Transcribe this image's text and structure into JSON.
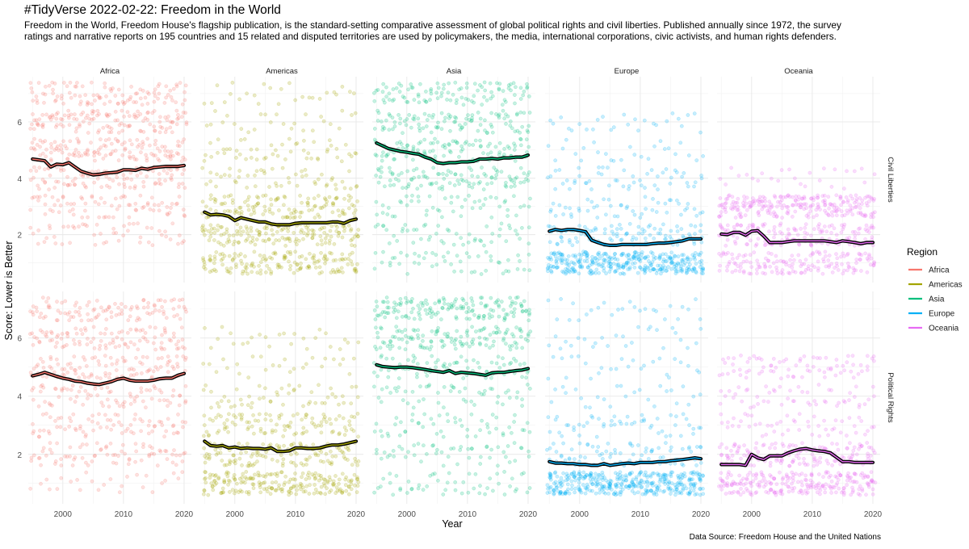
{
  "chart_data": {
    "type": "scatter",
    "title": "#TidyVerse 2022-02-22: Freedom in the World",
    "subtitle_lines": [
      "Freedom in the World, Freedom House's flagship publication, is the standard-setting comparative assessment of global political rights and civil liberties. Published annually since 1972, the survey",
      "ratings and narrative reports on 195 countries and 15 related and disputed territories are used by policymakers, the media, international corporations, civic activists, and human rights defenders."
    ],
    "caption": "Data Source: Freedom House and the United Nations",
    "xlabel": "Year",
    "ylabel": "Score: Lower is Better",
    "x_ticks": [
      2000,
      2010,
      2020
    ],
    "y_ticks": [
      2,
      4,
      6
    ],
    "xlim": [
      1994.3,
      2021.2
    ],
    "ylim": [
      0.3,
      7.6
    ],
    "grid": true,
    "columns": [
      "Africa",
      "Americas",
      "Asia",
      "Europe",
      "Oceania"
    ],
    "rows": [
      "Civil Liberties",
      "Political Rights"
    ],
    "legend": {
      "title": "Region",
      "position": "right",
      "items": [
        {
          "label": "Africa",
          "color": "#F8766D"
        },
        {
          "label": "Americas",
          "color": "#A3A500"
        },
        {
          "label": "Asia",
          "color": "#00BF7D"
        },
        {
          "label": "Europe",
          "color": "#00B0F6"
        },
        {
          "label": "Oceania",
          "color": "#E76BF3"
        }
      ]
    },
    "point_distributions": {
      "Civil Liberties": {
        "Africa": [
          0.02,
          0.08,
          0.12,
          0.18,
          0.22,
          0.22,
          0.16
        ],
        "Americas": [
          0.26,
          0.28,
          0.22,
          0.1,
          0.07,
          0.04,
          0.03
        ],
        "Asia": [
          0.07,
          0.08,
          0.11,
          0.16,
          0.2,
          0.2,
          0.18
        ],
        "Europe": [
          0.58,
          0.17,
          0.08,
          0.08,
          0.04,
          0.03,
          0.02
        ],
        "Oceania": [
          0.28,
          0.26,
          0.4,
          0.06,
          0.0,
          0.0,
          0.0
        ]
      },
      "Political Rights": {
        "Africa": [
          0.06,
          0.12,
          0.14,
          0.13,
          0.16,
          0.19,
          0.2
        ],
        "Americas": [
          0.38,
          0.22,
          0.19,
          0.11,
          0.05,
          0.03,
          0.02
        ],
        "Asia": [
          0.1,
          0.09,
          0.09,
          0.1,
          0.12,
          0.22,
          0.28
        ],
        "Europe": [
          0.62,
          0.14,
          0.09,
          0.05,
          0.04,
          0.03,
          0.03
        ],
        "Oceania": [
          0.4,
          0.25,
          0.11,
          0.1,
          0.14,
          0.0,
          0.0
        ]
      }
    },
    "series": [
      {
        "region": "Africa",
        "measure": "Civil Liberties",
        "x": [
          1995,
          1996,
          1997,
          1998,
          1999,
          2000,
          2001,
          2002,
          2003,
          2004,
          2005,
          2006,
          2007,
          2008,
          2009,
          2010,
          2011,
          2012,
          2013,
          2014,
          2015,
          2016,
          2017,
          2018,
          2019,
          2020
        ],
        "y": [
          4.68,
          4.65,
          4.62,
          4.4,
          4.5,
          4.48,
          4.55,
          4.4,
          4.25,
          4.18,
          4.12,
          4.14,
          4.18,
          4.2,
          4.22,
          4.3,
          4.3,
          4.28,
          4.35,
          4.32,
          4.38,
          4.4,
          4.42,
          4.42,
          4.42,
          4.45
        ]
      },
      {
        "region": "Americas",
        "measure": "Civil Liberties",
        "x": [
          1995,
          1996,
          1997,
          1998,
          1999,
          2000,
          2001,
          2002,
          2003,
          2004,
          2005,
          2006,
          2007,
          2008,
          2009,
          2010,
          2011,
          2012,
          2013,
          2014,
          2015,
          2016,
          2017,
          2018,
          2019,
          2020
        ],
        "y": [
          2.8,
          2.7,
          2.72,
          2.7,
          2.65,
          2.5,
          2.6,
          2.55,
          2.5,
          2.45,
          2.45,
          2.38,
          2.35,
          2.35,
          2.35,
          2.4,
          2.42,
          2.42,
          2.42,
          2.42,
          2.42,
          2.45,
          2.45,
          2.4,
          2.5,
          2.55
        ]
      },
      {
        "region": "Asia",
        "measure": "Civil Liberties",
        "x": [
          1995,
          1996,
          1997,
          1998,
          1999,
          2000,
          2001,
          2002,
          2003,
          2004,
          2005,
          2006,
          2007,
          2008,
          2009,
          2010,
          2011,
          2012,
          2013,
          2014,
          2015,
          2016,
          2017,
          2018,
          2019,
          2020
        ],
        "y": [
          5.25,
          5.15,
          5.05,
          5.0,
          4.95,
          4.92,
          4.88,
          4.85,
          4.75,
          4.68,
          4.55,
          4.52,
          4.55,
          4.55,
          4.58,
          4.58,
          4.6,
          4.68,
          4.68,
          4.7,
          4.68,
          4.72,
          4.72,
          4.75,
          4.75,
          4.82
        ]
      },
      {
        "region": "Europe",
        "measure": "Civil Liberties",
        "x": [
          1995,
          1996,
          1997,
          1998,
          1999,
          2000,
          2001,
          2002,
          2003,
          2004,
          2005,
          2006,
          2007,
          2008,
          2009,
          2010,
          2011,
          2012,
          2013,
          2014,
          2015,
          2016,
          2017,
          2018,
          2019,
          2020
        ],
        "y": [
          2.12,
          2.18,
          2.15,
          2.18,
          2.18,
          2.15,
          2.1,
          1.8,
          1.72,
          1.65,
          1.62,
          1.62,
          1.65,
          1.65,
          1.65,
          1.65,
          1.65,
          1.68,
          1.7,
          1.7,
          1.72,
          1.75,
          1.78,
          1.85,
          1.85,
          1.85
        ]
      },
      {
        "region": "Oceania",
        "measure": "Civil Liberties",
        "x": [
          1995,
          1996,
          1997,
          1998,
          1999,
          2000,
          2001,
          2002,
          2003,
          2004,
          2005,
          2006,
          2007,
          2008,
          2009,
          2010,
          2011,
          2012,
          2013,
          2014,
          2015,
          2016,
          2017,
          2018,
          2019,
          2020
        ],
        "y": [
          2.02,
          2.0,
          2.08,
          2.08,
          1.98,
          2.12,
          2.14,
          1.95,
          1.72,
          1.72,
          1.72,
          1.75,
          1.78,
          1.78,
          1.78,
          1.78,
          1.78,
          1.78,
          1.75,
          1.72,
          1.78,
          1.75,
          1.72,
          1.68,
          1.72,
          1.72
        ]
      },
      {
        "region": "Africa",
        "measure": "Political Rights",
        "x": [
          1995,
          1996,
          1997,
          1998,
          1999,
          2000,
          2001,
          2002,
          2003,
          2004,
          2005,
          2006,
          2007,
          2008,
          2009,
          2010,
          2011,
          2012,
          2013,
          2014,
          2015,
          2016,
          2017,
          2018,
          2019,
          2020
        ],
        "y": [
          4.7,
          4.75,
          4.82,
          4.75,
          4.68,
          4.62,
          4.58,
          4.52,
          4.5,
          4.45,
          4.42,
          4.4,
          4.45,
          4.5,
          4.58,
          4.62,
          4.55,
          4.52,
          4.52,
          4.52,
          4.55,
          4.6,
          4.62,
          4.62,
          4.72,
          4.78
        ]
      },
      {
        "region": "Americas",
        "measure": "Political Rights",
        "x": [
          1995,
          1996,
          1997,
          1998,
          1999,
          2000,
          2001,
          2002,
          2003,
          2004,
          2005,
          2006,
          2007,
          2008,
          2009,
          2010,
          2011,
          2012,
          2013,
          2014,
          2015,
          2016,
          2017,
          2018,
          2019,
          2020
        ],
        "y": [
          2.45,
          2.3,
          2.28,
          2.3,
          2.22,
          2.25,
          2.2,
          2.22,
          2.2,
          2.2,
          2.18,
          2.22,
          2.1,
          2.1,
          2.12,
          2.22,
          2.22,
          2.2,
          2.2,
          2.22,
          2.28,
          2.32,
          2.32,
          2.35,
          2.4,
          2.45
        ]
      },
      {
        "region": "Asia",
        "measure": "Political Rights",
        "x": [
          1995,
          1996,
          1997,
          1998,
          1999,
          2000,
          2001,
          2002,
          2003,
          2004,
          2005,
          2006,
          2007,
          2008,
          2009,
          2010,
          2011,
          2012,
          2013,
          2014,
          2015,
          2016,
          2017,
          2018,
          2019,
          2020
        ],
        "y": [
          5.08,
          5.02,
          5.0,
          4.98,
          5.0,
          5.0,
          4.98,
          4.95,
          4.92,
          4.88,
          4.85,
          4.82,
          4.88,
          4.78,
          4.82,
          4.8,
          4.78,
          4.75,
          4.72,
          4.8,
          4.82,
          4.82,
          4.85,
          4.88,
          4.9,
          4.95
        ]
      },
      {
        "region": "Europe",
        "measure": "Political Rights",
        "x": [
          1995,
          1996,
          1997,
          1998,
          1999,
          2000,
          2001,
          2002,
          2003,
          2004,
          2005,
          2006,
          2007,
          2008,
          2009,
          2010,
          2011,
          2012,
          2013,
          2014,
          2015,
          2016,
          2017,
          2018,
          2019,
          2020
        ],
        "y": [
          1.75,
          1.7,
          1.7,
          1.68,
          1.68,
          1.65,
          1.65,
          1.62,
          1.62,
          1.68,
          1.62,
          1.65,
          1.68,
          1.7,
          1.68,
          1.72,
          1.72,
          1.72,
          1.75,
          1.75,
          1.78,
          1.8,
          1.82,
          1.85,
          1.88,
          1.85
        ]
      },
      {
        "region": "Oceania",
        "measure": "Political Rights",
        "x": [
          1995,
          1996,
          1997,
          1998,
          1999,
          2000,
          2001,
          2002,
          2003,
          2004,
          2005,
          2006,
          2007,
          2008,
          2009,
          2010,
          2011,
          2012,
          2013,
          2014,
          2015,
          2016,
          2017,
          2018,
          2019,
          2020
        ],
        "y": [
          1.65,
          1.65,
          1.65,
          1.65,
          1.62,
          2.0,
          1.88,
          1.82,
          1.95,
          1.95,
          1.95,
          2.05,
          2.12,
          2.18,
          2.2,
          2.15,
          2.12,
          2.1,
          2.05,
          1.9,
          1.75,
          1.75,
          1.72,
          1.72,
          1.72,
          1.72
        ]
      }
    ]
  }
}
